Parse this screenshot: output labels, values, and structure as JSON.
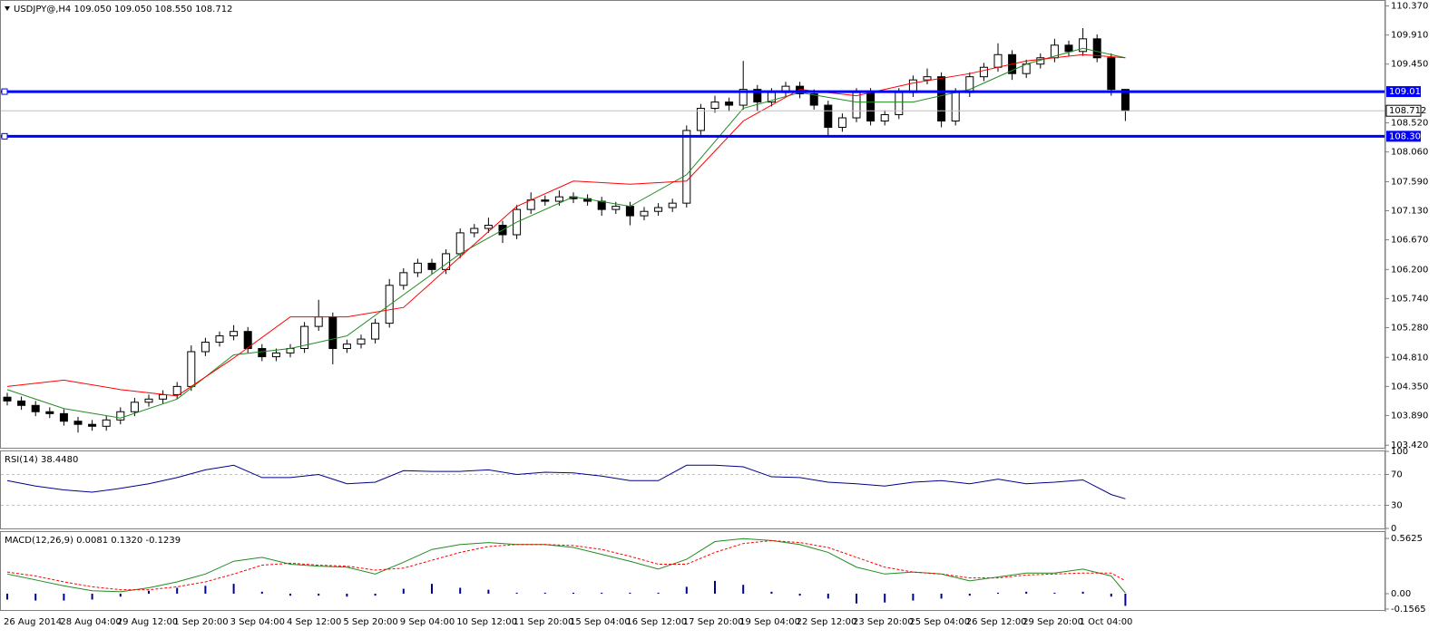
{
  "chart_data": [
    {
      "type": "candlestick",
      "title": "USDJPY@,H4  109.050 109.050 108.550 108.712",
      "categories": [
        "26 Aug 2014",
        null,
        null,
        null,
        "28 Aug 04:00",
        null,
        null,
        null,
        "29 Aug 12:00",
        null,
        null,
        null,
        "1 Sep 20:00",
        null,
        null,
        null,
        "3 Sep 04:00",
        null,
        null,
        null,
        "4 Sep 12:00",
        null,
        null,
        null,
        "5 Sep 20:00",
        null,
        null,
        null,
        "9 Sep 04:00",
        null,
        null,
        null,
        "10 Sep 12:00",
        null,
        null,
        null,
        "11 Sep 20:00",
        null,
        null,
        null,
        "15 Sep 04:00",
        null,
        null,
        null,
        "16 Sep 12:00",
        null,
        null,
        null,
        "17 Sep 20:00",
        null,
        null,
        null,
        "19 Sep 04:00",
        null,
        null,
        null,
        "22 Sep 12:00",
        null,
        null,
        null,
        "23 Sep 20:00",
        null,
        null,
        null,
        "25 Sep 04:00",
        null,
        null,
        null,
        "26 Sep 12:00",
        null,
        null,
        null,
        "29 Sep 20:00",
        null,
        null,
        null,
        "1 Oct 04:00",
        null,
        null,
        null
      ],
      "open": [
        104.18,
        104.12,
        104.05,
        103.95,
        103.92,
        103.8,
        103.75,
        103.72,
        103.82,
        103.95,
        104.1,
        104.15,
        104.22,
        104.35,
        104.9,
        105.05,
        105.15,
        105.22,
        104.95,
        104.82,
        104.88,
        104.95,
        105.3,
        105.45,
        104.95,
        105.02,
        105.1,
        105.35,
        105.95,
        106.15,
        106.3,
        106.2,
        106.45,
        106.78,
        106.85,
        106.9,
        106.75,
        107.15,
        107.3,
        107.28,
        107.35,
        107.32,
        107.28,
        107.15,
        107.2,
        107.05,
        107.12,
        107.18,
        107.25,
        108.4,
        108.75,
        108.85,
        108.8,
        109.05,
        108.85,
        109.0,
        109.1,
        108.98,
        108.8,
        108.45,
        108.6,
        109.0,
        108.55,
        108.65,
        109.0,
        109.2,
        109.25,
        108.55,
        109.0,
        109.25,
        109.4,
        109.6,
        109.3,
        109.45,
        109.55,
        109.75,
        109.65,
        109.85,
        109.55,
        109.05
      ],
      "high": [
        104.25,
        104.19,
        104.12,
        104.02,
        103.99,
        103.87,
        103.82,
        103.89,
        104.02,
        104.17,
        104.22,
        104.29,
        104.42,
        105.0,
        105.12,
        105.22,
        105.32,
        105.29,
        105.02,
        104.95,
        105.02,
        105.37,
        105.72,
        105.52,
        105.09,
        105.17,
        105.42,
        106.05,
        106.22,
        106.37,
        106.37,
        106.52,
        106.85,
        106.92,
        107.02,
        106.97,
        107.22,
        107.42,
        107.37,
        107.45,
        107.42,
        107.39,
        107.35,
        107.27,
        107.27,
        107.19,
        107.25,
        107.32,
        108.48,
        108.82,
        108.95,
        108.92,
        109.5,
        109.12,
        109.07,
        109.17,
        109.17,
        109.05,
        108.87,
        108.67,
        109.07,
        109.07,
        108.72,
        109.07,
        109.27,
        109.38,
        109.32,
        109.07,
        109.32,
        109.47,
        109.78,
        109.67,
        109.52,
        109.62,
        109.85,
        109.82,
        110.02,
        109.92,
        109.62,
        109.05
      ],
      "low": [
        104.05,
        103.98,
        103.88,
        103.85,
        103.73,
        103.62,
        103.65,
        103.65,
        103.75,
        103.88,
        104.03,
        104.08,
        104.15,
        104.28,
        104.83,
        104.98,
        105.08,
        104.88,
        104.75,
        104.75,
        104.81,
        104.88,
        105.23,
        104.7,
        104.88,
        104.95,
        105.03,
        105.28,
        105.88,
        106.08,
        106.13,
        106.13,
        106.38,
        106.71,
        106.78,
        106.62,
        106.68,
        107.08,
        107.21,
        107.21,
        107.25,
        107.21,
        107.05,
        107.08,
        106.9,
        106.98,
        107.05,
        107.11,
        107.18,
        108.33,
        108.68,
        108.7,
        108.73,
        108.7,
        108.78,
        108.93,
        108.91,
        108.73,
        108.3,
        108.38,
        108.53,
        108.48,
        108.48,
        108.58,
        108.93,
        109.13,
        108.45,
        108.48,
        108.93,
        109.18,
        109.33,
        109.2,
        109.23,
        109.38,
        109.48,
        109.58,
        109.58,
        109.48,
        108.95,
        108.55
      ],
      "close": [
        104.12,
        104.05,
        103.95,
        103.92,
        103.8,
        103.75,
        103.72,
        103.82,
        103.95,
        104.1,
        104.15,
        104.22,
        104.35,
        104.9,
        105.05,
        105.15,
        105.22,
        104.95,
        104.82,
        104.88,
        104.95,
        105.3,
        105.45,
        104.95,
        105.02,
        105.1,
        105.35,
        105.95,
        106.15,
        106.3,
        106.2,
        106.45,
        106.78,
        106.85,
        106.9,
        106.75,
        107.15,
        107.3,
        107.28,
        107.35,
        107.32,
        107.28,
        107.15,
        107.2,
        107.05,
        107.12,
        107.18,
        107.25,
        108.4,
        108.75,
        108.85,
        108.8,
        109.05,
        108.85,
        109.0,
        109.1,
        108.98,
        108.8,
        108.45,
        108.6,
        109.0,
        108.55,
        108.65,
        109.0,
        109.2,
        109.25,
        108.55,
        109.0,
        109.25,
        109.4,
        109.6,
        109.3,
        109.45,
        109.55,
        109.75,
        109.65,
        109.85,
        109.55,
        109.05,
        108.712
      ],
      "lines": [
        {
          "color": "#228b22",
          "x": [
            0,
            4,
            8,
            12,
            16,
            20,
            24,
            28,
            32,
            36,
            40,
            44,
            48,
            52,
            56,
            60,
            64,
            68,
            72,
            76,
            79
          ],
          "values": [
            104.3,
            104.0,
            103.85,
            104.15,
            104.85,
            104.95,
            105.15,
            105.8,
            106.45,
            106.95,
            107.35,
            107.2,
            107.7,
            108.75,
            109.0,
            108.85,
            108.85,
            109.05,
            109.45,
            109.7,
            109.55
          ]
        },
        {
          "color": "#ff0000",
          "x": [
            0,
            4,
            8,
            12,
            16,
            20,
            24,
            28,
            32,
            36,
            40,
            44,
            48,
            52,
            56,
            60,
            64,
            68,
            72,
            76,
            79
          ],
          "values": [
            104.35,
            104.45,
            104.3,
            104.2,
            104.8,
            105.45,
            105.45,
            105.6,
            106.4,
            107.2,
            107.6,
            107.55,
            107.6,
            108.55,
            109.05,
            108.95,
            109.15,
            109.3,
            109.5,
            109.6,
            109.55
          ]
        }
      ],
      "levels": [
        109.015,
        108.308
      ],
      "level_color": "#0000ff",
      "ylim": [
        103.38,
        110.45
      ],
      "yticks": [
        {
          "value": 110.37,
          "label": "110.370"
        },
        {
          "value": 109.91,
          "label": "109.910"
        },
        {
          "value": 109.45,
          "label": "109.450"
        },
        {
          "value": 108.52,
          "label": "108.520"
        },
        {
          "value": 108.06,
          "label": "108.060"
        },
        {
          "value": 107.59,
          "label": "107.590"
        },
        {
          "value": 107.13,
          "label": "107.130"
        },
        {
          "value": 106.67,
          "label": "106.670"
        },
        {
          "value": 106.2,
          "label": "106.200"
        },
        {
          "value": 105.74,
          "label": "105.740"
        },
        {
          "value": 105.28,
          "label": "105.280"
        },
        {
          "value": 104.81,
          "label": "104.810"
        },
        {
          "value": 104.35,
          "label": "104.350"
        },
        {
          "value": 103.89,
          "label": "103.890"
        },
        {
          "value": 103.42,
          "label": "103.420"
        }
      ]
    },
    {
      "type": "line",
      "title": "RSI(14) 38.4480",
      "color": "#00008b",
      "x": [
        0,
        2,
        4,
        6,
        8,
        10,
        12,
        14,
        16,
        18,
        20,
        22,
        24,
        26,
        28,
        30,
        32,
        34,
        36,
        38,
        40,
        42,
        44,
        46,
        48,
        50,
        52,
        54,
        56,
        58,
        60,
        62,
        64,
        66,
        68,
        70,
        72,
        74,
        76,
        78,
        79
      ],
      "values": [
        62,
        55,
        50,
        47,
        52,
        58,
        66,
        76,
        82,
        66,
        66,
        70,
        58,
        60,
        75,
        74,
        74,
        76,
        70,
        73,
        72,
        68,
        62,
        62,
        82,
        82,
        80,
        67,
        66,
        60,
        58,
        55,
        60,
        62,
        58,
        64,
        58,
        60,
        63,
        44,
        38.448
      ],
      "levels": [
        30,
        70
      ],
      "ylim": [
        0,
        100
      ],
      "yticks": [
        0,
        30,
        70,
        100
      ]
    },
    {
      "type": "macd",
      "title": "MACD(12,26,9) 0.0081 0.1320 -0.1239",
      "x": [
        0,
        2,
        4,
        6,
        8,
        10,
        12,
        14,
        16,
        18,
        20,
        22,
        24,
        26,
        28,
        30,
        32,
        34,
        36,
        38,
        40,
        42,
        44,
        46,
        48,
        50,
        52,
        54,
        56,
        58,
        60,
        62,
        64,
        66,
        68,
        70,
        72,
        74,
        76,
        78,
        79
      ],
      "series": [
        {
          "color": "#00008b",
          "histogram": true,
          "values": [
            -0.06,
            -0.07,
            -0.07,
            -0.06,
            -0.03,
            0.03,
            0.06,
            0.08,
            0.1,
            0.02,
            -0.02,
            -0.02,
            -0.03,
            -0.02,
            0.05,
            0.1,
            0.06,
            0.04,
            0.01,
            0.01,
            0.01,
            0.01,
            0.01,
            0.01,
            0.07,
            0.13,
            0.09,
            0.02,
            -0.02,
            -0.05,
            -0.1,
            -0.09,
            -0.07,
            -0.05,
            -0.02,
            0.01,
            0.02,
            0.01,
            0.02,
            -0.03,
            -0.1239
          ]
        },
        {
          "color": "#228b22",
          "values": [
            0.2,
            0.14,
            0.08,
            0.03,
            0.02,
            0.06,
            0.12,
            0.2,
            0.33,
            0.37,
            0.3,
            0.28,
            0.27,
            0.2,
            0.32,
            0.45,
            0.5,
            0.52,
            0.5,
            0.5,
            0.47,
            0.4,
            0.33,
            0.25,
            0.35,
            0.53,
            0.56,
            0.54,
            0.5,
            0.42,
            0.27,
            0.2,
            0.22,
            0.2,
            0.13,
            0.17,
            0.21,
            0.21,
            0.25,
            0.18,
            0.0081
          ]
        },
        {
          "color": "#ff0000",
          "dash": true,
          "values": [
            0.22,
            0.18,
            0.12,
            0.07,
            0.04,
            0.04,
            0.07,
            0.12,
            0.2,
            0.29,
            0.31,
            0.29,
            0.28,
            0.24,
            0.26,
            0.34,
            0.42,
            0.48,
            0.5,
            0.5,
            0.49,
            0.45,
            0.38,
            0.3,
            0.3,
            0.42,
            0.51,
            0.54,
            0.52,
            0.47,
            0.37,
            0.27,
            0.22,
            0.2,
            0.16,
            0.16,
            0.19,
            0.2,
            0.21,
            0.21,
            0.132
          ]
        }
      ],
      "ylim": [
        -0.166,
        0.627
      ],
      "yticks": [
        0.5625,
        {
          "value": 0,
          "label": "0.00"
        },
        -0.1565
      ]
    }
  ]
}
